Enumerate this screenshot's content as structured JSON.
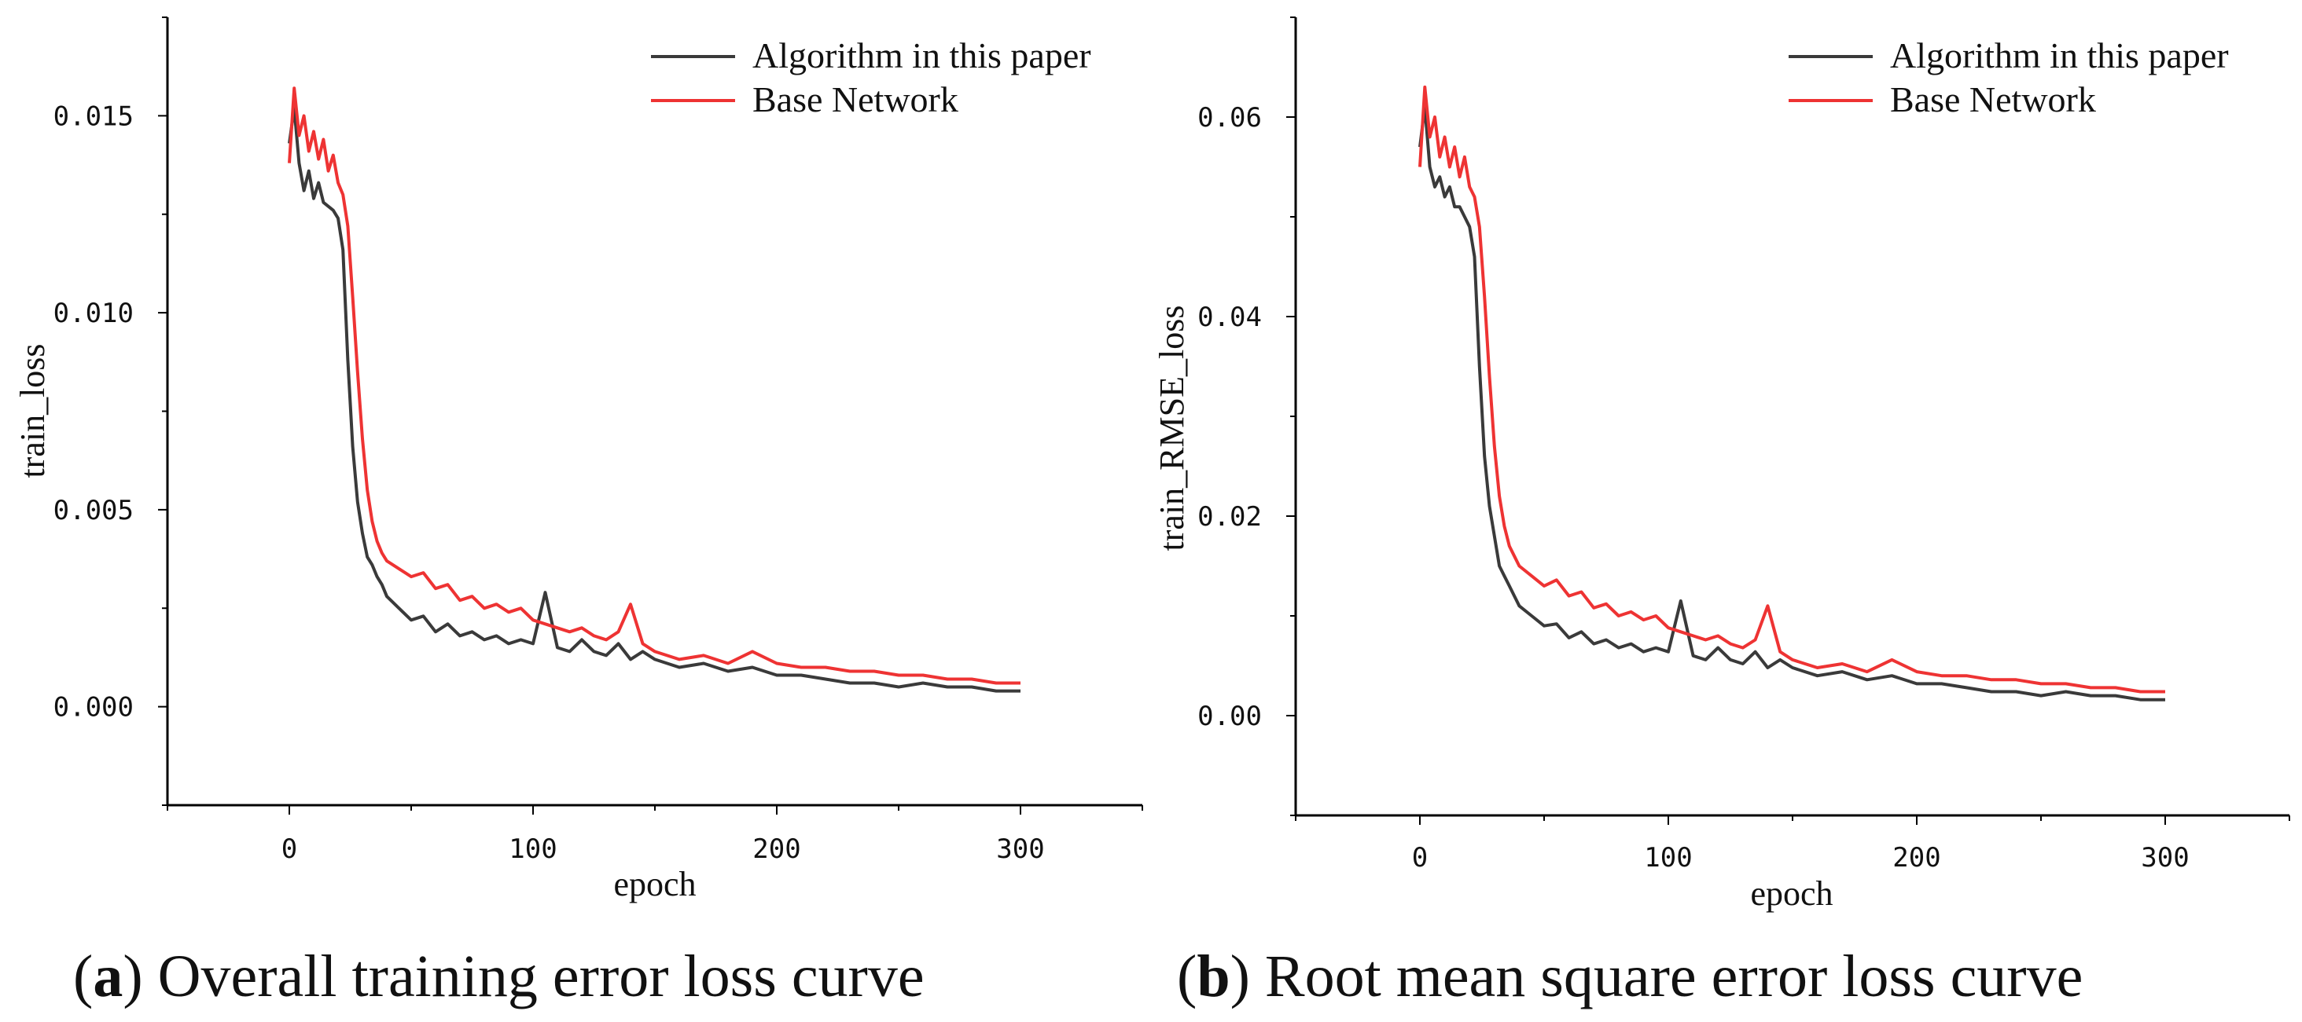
{
  "chart_data": [
    {
      "type": "line",
      "caption_letter": "a",
      "caption_text": "Overall training error loss curve",
      "xlabel": "epoch",
      "ylabel": "train_loss",
      "xlim": [
        -50,
        350
      ],
      "ylim": [
        -0.0025,
        0.0175
      ],
      "xticks": [
        0,
        100,
        200,
        300
      ],
      "yticks": [
        0.0,
        0.005,
        0.01,
        0.015
      ],
      "ytick_labels": [
        "0.000",
        "0.005",
        "0.010",
        "0.015"
      ],
      "legend_position": "top-right",
      "series": [
        {
          "name": "Algorithm in this paper",
          "color": "#3a3a3a",
          "x": [
            0,
            2,
            4,
            6,
            8,
            10,
            12,
            14,
            16,
            18,
            20,
            22,
            24,
            26,
            28,
            30,
            32,
            34,
            36,
            38,
            40,
            45,
            50,
            55,
            60,
            65,
            70,
            75,
            80,
            85,
            90,
            95,
            100,
            105,
            110,
            115,
            120,
            125,
            130,
            135,
            140,
            145,
            150,
            160,
            170,
            180,
            190,
            200,
            210,
            220,
            230,
            240,
            250,
            260,
            270,
            280,
            290,
            300
          ],
          "values": [
            0.0143,
            0.0152,
            0.0138,
            0.0131,
            0.0136,
            0.0129,
            0.0133,
            0.0128,
            0.0127,
            0.0126,
            0.0124,
            0.0116,
            0.0088,
            0.0066,
            0.0052,
            0.0044,
            0.0038,
            0.0036,
            0.0033,
            0.0031,
            0.0028,
            0.0025,
            0.0022,
            0.0023,
            0.0019,
            0.0021,
            0.0018,
            0.0019,
            0.0017,
            0.0018,
            0.0016,
            0.0017,
            0.0016,
            0.0029,
            0.0015,
            0.0014,
            0.0017,
            0.0014,
            0.0013,
            0.0016,
            0.0012,
            0.0014,
            0.0012,
            0.001,
            0.0011,
            0.0009,
            0.001,
            0.0008,
            0.0008,
            0.0007,
            0.0006,
            0.0006,
            0.0005,
            0.0006,
            0.0005,
            0.0005,
            0.0004,
            0.0004
          ]
        },
        {
          "name": "Base Network",
          "color": "#ee3333",
          "x": [
            0,
            2,
            4,
            6,
            8,
            10,
            12,
            14,
            16,
            18,
            20,
            22,
            24,
            26,
            28,
            30,
            32,
            34,
            36,
            38,
            40,
            45,
            50,
            55,
            60,
            65,
            70,
            75,
            80,
            85,
            90,
            95,
            100,
            105,
            110,
            115,
            120,
            125,
            130,
            135,
            140,
            145,
            150,
            160,
            170,
            180,
            190,
            200,
            210,
            220,
            230,
            240,
            250,
            260,
            270,
            280,
            290,
            300
          ],
          "values": [
            0.0138,
            0.0157,
            0.0145,
            0.015,
            0.0141,
            0.0146,
            0.0139,
            0.0144,
            0.0136,
            0.014,
            0.0133,
            0.013,
            0.0122,
            0.0104,
            0.0085,
            0.0068,
            0.0055,
            0.0047,
            0.0042,
            0.0039,
            0.0037,
            0.0035,
            0.0033,
            0.0034,
            0.003,
            0.0031,
            0.0027,
            0.0028,
            0.0025,
            0.0026,
            0.0024,
            0.0025,
            0.0022,
            0.0021,
            0.002,
            0.0019,
            0.002,
            0.0018,
            0.0017,
            0.0019,
            0.0026,
            0.0016,
            0.0014,
            0.0012,
            0.0013,
            0.0011,
            0.0014,
            0.0011,
            0.001,
            0.001,
            0.0009,
            0.0009,
            0.0008,
            0.0008,
            0.0007,
            0.0007,
            0.0006,
            0.0006
          ]
        }
      ]
    },
    {
      "type": "line",
      "caption_letter": "b",
      "caption_text": "Root mean square error loss curve",
      "xlabel": "epoch",
      "ylabel": "train_RMSE_loss",
      "xlim": [
        -50,
        350
      ],
      "ylim": [
        -0.01,
        0.07
      ],
      "xticks": [
        0,
        100,
        200,
        300
      ],
      "yticks": [
        0.0,
        0.02,
        0.04,
        0.06
      ],
      "ytick_labels": [
        "0.00",
        "0.02",
        "0.04",
        "0.06"
      ],
      "legend_position": "top-right",
      "series": [
        {
          "name": "Algorithm in this paper",
          "color": "#3a3a3a",
          "x": [
            0,
            2,
            4,
            6,
            8,
            10,
            12,
            14,
            16,
            18,
            20,
            22,
            24,
            26,
            28,
            30,
            32,
            34,
            36,
            38,
            40,
            45,
            50,
            55,
            60,
            65,
            70,
            75,
            80,
            85,
            90,
            95,
            100,
            105,
            110,
            115,
            120,
            125,
            130,
            135,
            140,
            145,
            150,
            160,
            170,
            180,
            190,
            200,
            210,
            220,
            230,
            240,
            250,
            260,
            270,
            280,
            290,
            300
          ],
          "values": [
            0.057,
            0.061,
            0.055,
            0.053,
            0.054,
            0.052,
            0.053,
            0.051,
            0.051,
            0.05,
            0.049,
            0.046,
            0.035,
            0.026,
            0.021,
            0.018,
            0.015,
            0.014,
            0.013,
            0.012,
            0.011,
            0.01,
            0.009,
            0.0092,
            0.0078,
            0.0084,
            0.0072,
            0.0076,
            0.0068,
            0.0072,
            0.0064,
            0.0068,
            0.0064,
            0.0115,
            0.006,
            0.0056,
            0.0068,
            0.0056,
            0.0052,
            0.0064,
            0.0048,
            0.0056,
            0.0048,
            0.004,
            0.0044,
            0.0036,
            0.004,
            0.0032,
            0.0032,
            0.0028,
            0.0024,
            0.0024,
            0.002,
            0.0024,
            0.002,
            0.002,
            0.0016,
            0.0016
          ]
        },
        {
          "name": "Base Network",
          "color": "#ee3333",
          "x": [
            0,
            2,
            4,
            6,
            8,
            10,
            12,
            14,
            16,
            18,
            20,
            22,
            24,
            26,
            28,
            30,
            32,
            34,
            36,
            38,
            40,
            45,
            50,
            55,
            60,
            65,
            70,
            75,
            80,
            85,
            90,
            95,
            100,
            105,
            110,
            115,
            120,
            125,
            130,
            135,
            140,
            145,
            150,
            160,
            170,
            180,
            190,
            200,
            210,
            220,
            230,
            240,
            250,
            260,
            270,
            280,
            290,
            300
          ],
          "values": [
            0.055,
            0.063,
            0.058,
            0.06,
            0.056,
            0.058,
            0.055,
            0.057,
            0.054,
            0.056,
            0.053,
            0.052,
            0.049,
            0.042,
            0.034,
            0.027,
            0.022,
            0.019,
            0.017,
            0.016,
            0.015,
            0.014,
            0.013,
            0.0136,
            0.012,
            0.0124,
            0.0108,
            0.0112,
            0.01,
            0.0104,
            0.0096,
            0.01,
            0.0088,
            0.0084,
            0.008,
            0.0076,
            0.008,
            0.0072,
            0.0068,
            0.0076,
            0.011,
            0.0064,
            0.0056,
            0.0048,
            0.0052,
            0.0044,
            0.0056,
            0.0044,
            0.004,
            0.004,
            0.0036,
            0.0036,
            0.0032,
            0.0032,
            0.0028,
            0.0028,
            0.0024,
            0.0024
          ]
        }
      ]
    }
  ]
}
